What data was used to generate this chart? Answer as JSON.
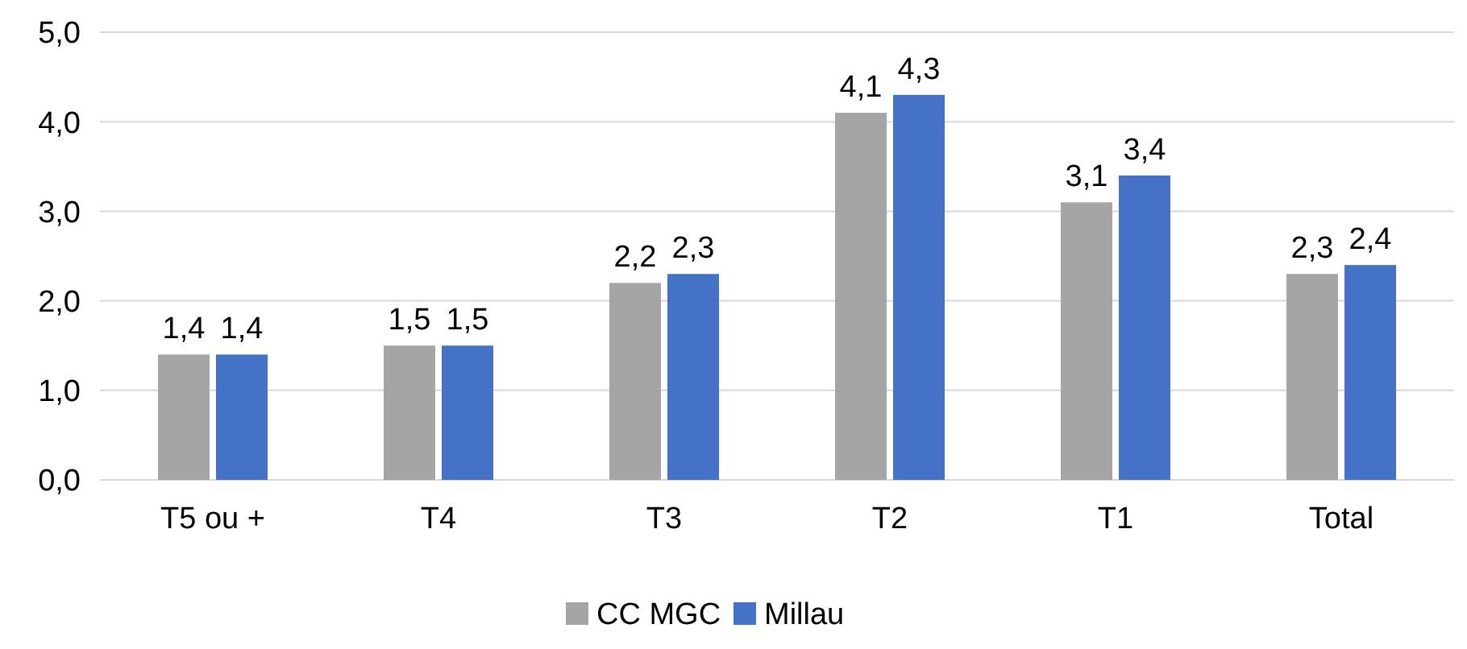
{
  "chart_data": {
    "type": "bar",
    "categories": [
      "T5 ou +",
      "T4",
      "T3",
      "T2",
      "T1",
      "Total"
    ],
    "series": [
      {
        "name": "CC MGC",
        "color": "#a5a5a5",
        "values": [
          1.4,
          1.5,
          2.2,
          4.1,
          3.1,
          2.3
        ],
        "value_labels": [
          "1,4",
          "1,5",
          "2,2",
          "4,1",
          "3,1",
          "2,3"
        ]
      },
      {
        "name": "Millau",
        "color": "#4472c4",
        "values": [
          1.4,
          1.5,
          2.3,
          4.3,
          3.4,
          2.4
        ],
        "value_labels": [
          "1,4",
          "1,5",
          "2,3",
          "4,3",
          "3,4",
          "2,4"
        ]
      }
    ],
    "ylim": [
      0,
      5
    ],
    "yticks": [
      {
        "value": 0,
        "label": "0,0"
      },
      {
        "value": 1,
        "label": "1,0"
      },
      {
        "value": 2,
        "label": "2,0"
      },
      {
        "value": 3,
        "label": "3,0"
      },
      {
        "value": 4,
        "label": "4,0"
      },
      {
        "value": 5,
        "label": "5,0"
      }
    ],
    "grid": "y",
    "legend": "bottom"
  }
}
